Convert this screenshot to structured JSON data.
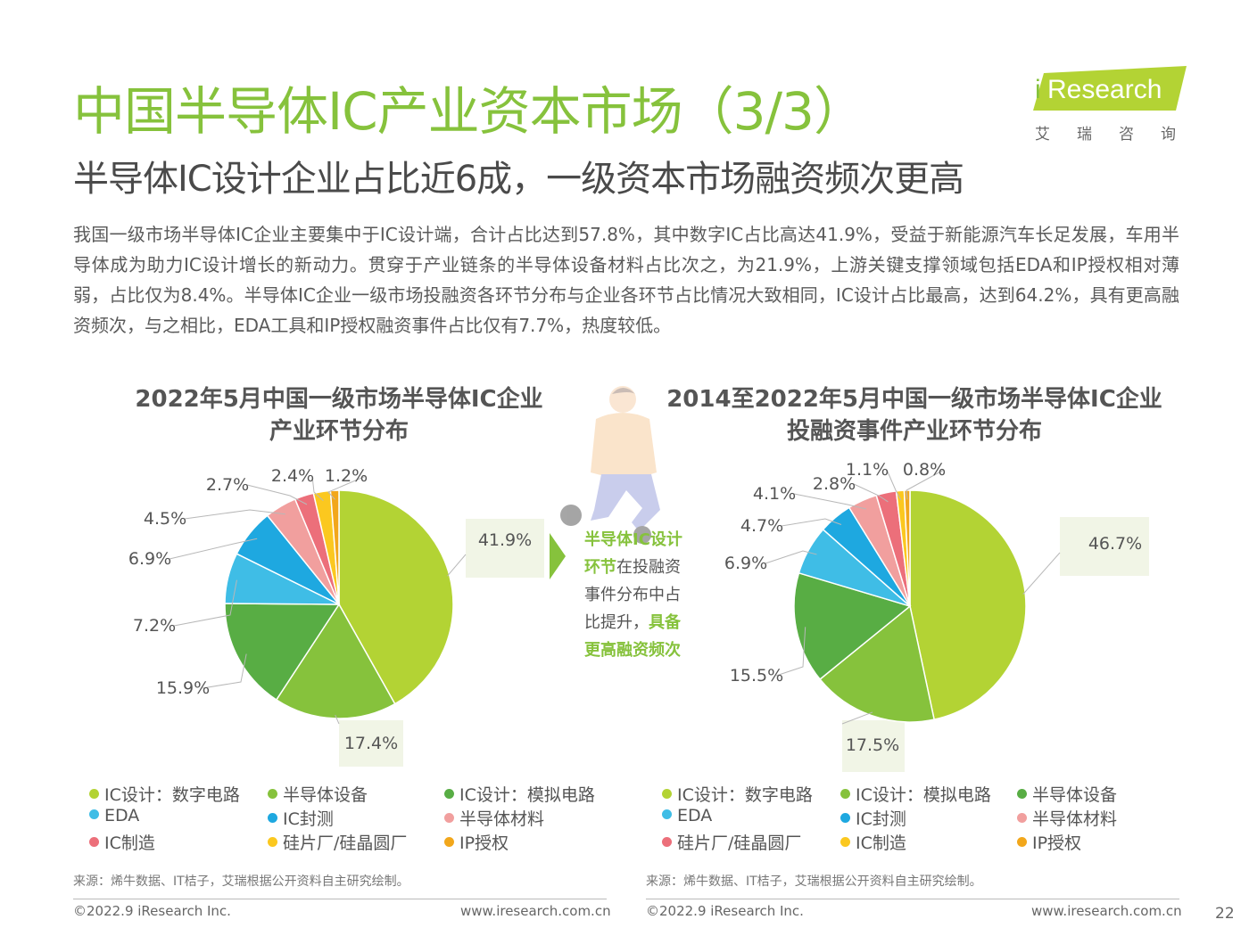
{
  "header": {
    "title": "中国半导体IC产业资本市场（3/3）",
    "subtitle": "半导体IC设计企业占比近6成，一级资本市场融资频次更高",
    "logo_i": "i",
    "logo_text": "Research",
    "logo_cn": "艾瑞咨询"
  },
  "intro": "我国一级市场半导体IC企业主要集中于IC设计端，合计占比达到57.8%，其中数字IC占比高达41.9%，受益于新能源汽车长足发展，车用半导体成为助力IC设计增长的新动力。贯穿于产业链条的半导体设备材料占比次之，为21.9%，上游关键支撑领域包括EDA和IP授权相对薄弱，占比仅为8.4%。半导体IC企业一级市场投融资各环节分布与企业各环节占比情况大致相同，IC设计占比最高，达到64.2%，具有更高融资频次，与之相比，EDA工具和IP授权融资事件占比仅有7.7%，热度较低。",
  "note": {
    "part1": "半导体IC设计环节",
    "part2": "在投融资事件分布中占比提升，",
    "part3": "具备更高融资频次"
  },
  "colors": {
    "accent": "#86c23c"
  },
  "chart_data": [
    {
      "type": "pie",
      "title": "2022年5月中国一级市场半导体IC企业产业环节分布",
      "title_line1": "2022年5月中国一级市场半导体IC企业",
      "title_line2": "产业环节分布",
      "slices": [
        {
          "name": "IC设计：数字电路",
          "value": 41.9,
          "label": "41.9%",
          "color": "#b3d334"
        },
        {
          "name": "半导体设备",
          "value": 17.4,
          "label": "17.4%",
          "color": "#86c23c"
        },
        {
          "name": "IC设计：模拟电路",
          "value": 15.9,
          "label": "15.9%",
          "color": "#58ad44"
        },
        {
          "name": "EDA",
          "value": 7.2,
          "label": "7.2%",
          "color": "#3fbde6"
        },
        {
          "name": "IC封测",
          "value": 6.9,
          "label": "6.9%",
          "color": "#1ea8e0"
        },
        {
          "name": "半导体材料",
          "value": 4.5,
          "label": "4.5%",
          "color": "#f19f9e"
        },
        {
          "name": "IC制造",
          "value": 2.7,
          "label": "2.7%",
          "color": "#ec6f7a"
        },
        {
          "name": "硅片厂/硅晶圆厂",
          "value": 2.4,
          "label": "2.4%",
          "color": "#fbc81f"
        },
        {
          "name": "IP授权",
          "value": 1.2,
          "label": "1.2%",
          "color": "#f2a71b"
        }
      ],
      "legend": [
        "IC设计：数字电路",
        "半导体设备",
        "IC设计：模拟电路",
        "EDA",
        "IC封测",
        "半导体材料",
        "IC制造",
        "硅片厂/硅晶圆厂",
        "IP授权"
      ],
      "legend_colors": [
        "#b3d334",
        "#86c23c",
        "#58ad44",
        "#3fbde6",
        "#1ea8e0",
        "#f19f9e",
        "#ec6f7a",
        "#fbc81f",
        "#f2a71b"
      ],
      "source": "来源：烯牛数据、IT桔子，艾瑞根据公开资料自主研究绘制。"
    },
    {
      "type": "pie",
      "title": "2014至2022年5月中国一级市场半导体IC企业投融资事件产业环节分布",
      "title_line1": "2014至2022年5月中国一级市场半导体IC企业",
      "title_line2": "投融资事件产业环节分布",
      "slices": [
        {
          "name": "IC设计：数字电路",
          "value": 46.7,
          "label": "46.7%",
          "color": "#b3d334"
        },
        {
          "name": "IC设计：模拟电路",
          "value": 17.5,
          "label": "17.5%",
          "color": "#86c23c"
        },
        {
          "name": "半导体设备",
          "value": 15.5,
          "label": "15.5%",
          "color": "#58ad44"
        },
        {
          "name": "EDA",
          "value": 6.9,
          "label": "6.9%",
          "color": "#3fbde6"
        },
        {
          "name": "IC封测",
          "value": 4.7,
          "label": "4.7%",
          "color": "#1ea8e0"
        },
        {
          "name": "半导体材料",
          "value": 4.1,
          "label": "4.1%",
          "color": "#f19f9e"
        },
        {
          "name": "硅片厂/硅晶圆厂",
          "value": 2.8,
          "label": "2.8%",
          "color": "#ec6f7a"
        },
        {
          "name": "IC制造",
          "value": 1.1,
          "label": "1.1%",
          "color": "#fbc81f"
        },
        {
          "name": "IP授权",
          "value": 0.8,
          "label": "0.8%",
          "color": "#f2a71b"
        }
      ],
      "legend": [
        "IC设计：数字电路",
        "IC设计：模拟电路",
        "半导体设备",
        "EDA",
        "IC封测",
        "半导体材料",
        "硅片厂/硅晶圆厂",
        "IC制造",
        "IP授权"
      ],
      "legend_colors": [
        "#b3d334",
        "#86c23c",
        "#58ad44",
        "#3fbde6",
        "#1ea8e0",
        "#f19f9e",
        "#ec6f7a",
        "#fbc81f",
        "#f2a71b"
      ],
      "source": "来源：烯牛数据、IT桔子，艾瑞根据公开资料自主研究绘制。"
    }
  ],
  "footer": {
    "copyright": "©2022.9 iResearch Inc.",
    "url": "www.iresearch.com.cn",
    "page_number": "22"
  }
}
